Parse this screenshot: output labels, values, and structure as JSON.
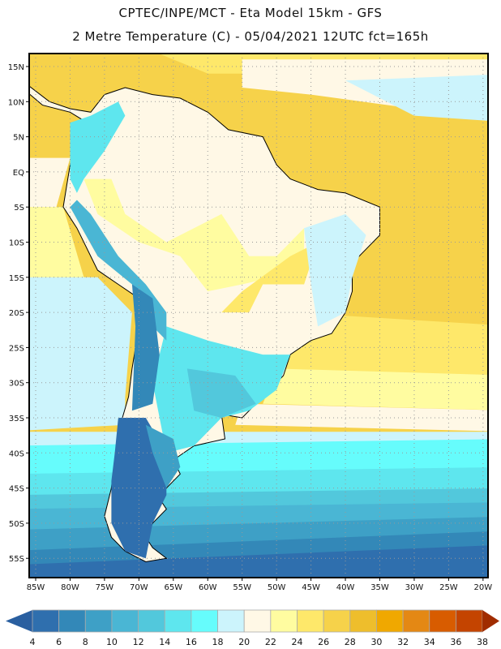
{
  "header": {
    "line1": "CPTEC/INPE/MCT -  Eta Model 15km - GFS",
    "line2": "2 Metre Temperature (C) - 05/04/2021 12UTC fct=165h"
  },
  "map": {
    "lat_labels": [
      "15N",
      "10N",
      "5N",
      "EQ",
      "5S",
      "10S",
      "15S",
      "20S",
      "25S",
      "30S",
      "35S",
      "40S",
      "45S",
      "50S",
      "55S"
    ],
    "lon_labels": [
      "85W",
      "80W",
      "75W",
      "70W",
      "65W",
      "60W",
      "55W",
      "50W",
      "45W",
      "40W",
      "35W",
      "30W",
      "25W",
      "20W"
    ]
  },
  "colorbar": {
    "levels": [
      "4",
      "6",
      "8",
      "10",
      "12",
      "14",
      "16",
      "18",
      "20",
      "22",
      "24",
      "26",
      "28",
      "30",
      "32",
      "34",
      "36",
      "38"
    ],
    "colors": [
      "#2f6fae",
      "#3388b8",
      "#3ea0c6",
      "#4ab6d4",
      "#52c8dc",
      "#5ee6ee",
      "#66fcfc",
      "#ccf4fc",
      "#fff8e6",
      "#fffca0",
      "#fee86a",
      "#f6d24a",
      "#eebe2c",
      "#f0a800",
      "#e48814",
      "#d85c00",
      "#c44400"
    ],
    "under_color": "#2a5fa0",
    "over_color": "#a02c00"
  }
}
